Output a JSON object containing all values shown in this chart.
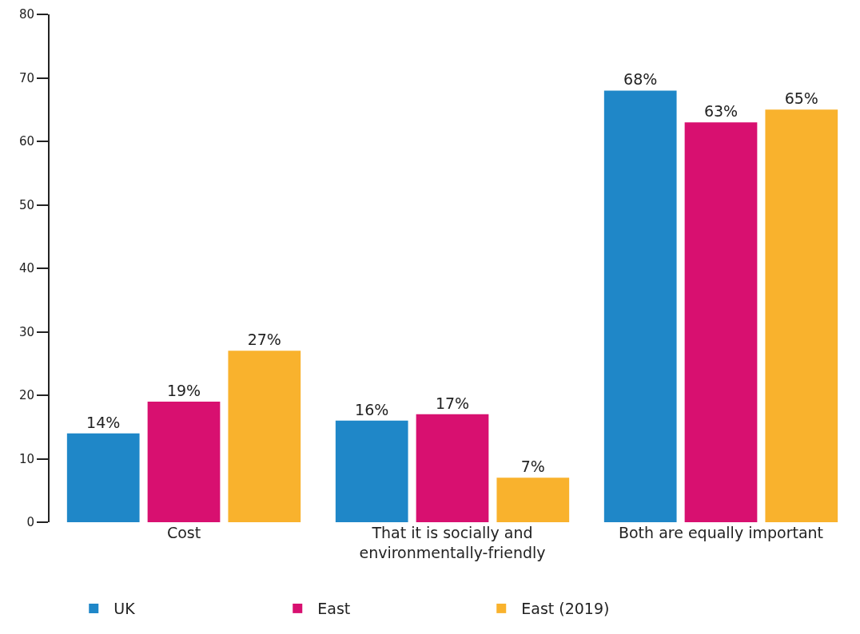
{
  "chart_data": {
    "type": "bar",
    "categories": [
      "Cost",
      "That it is socially and environmentally-friendly",
      "Both are equally important"
    ],
    "series": [
      {
        "name": "UK",
        "color": "#1f87c8",
        "values": [
          14,
          16,
          68
        ],
        "value_labels": [
          "14%",
          "16%",
          "68%"
        ]
      },
      {
        "name": "East",
        "color": "#d81070",
        "values": [
          19,
          17,
          63
        ],
        "value_labels": [
          "19%",
          "17%",
          "63%"
        ]
      },
      {
        "name": "East (2019)",
        "color": "#f9b22d",
        "values": [
          27,
          7,
          65
        ],
        "value_labels": [
          "27%",
          "7%",
          "65%"
        ]
      }
    ],
    "ylim": [
      0,
      80
    ],
    "yticks": [
      0,
      10,
      20,
      30,
      40,
      50,
      60,
      70,
      80
    ],
    "legend": "bottom"
  }
}
